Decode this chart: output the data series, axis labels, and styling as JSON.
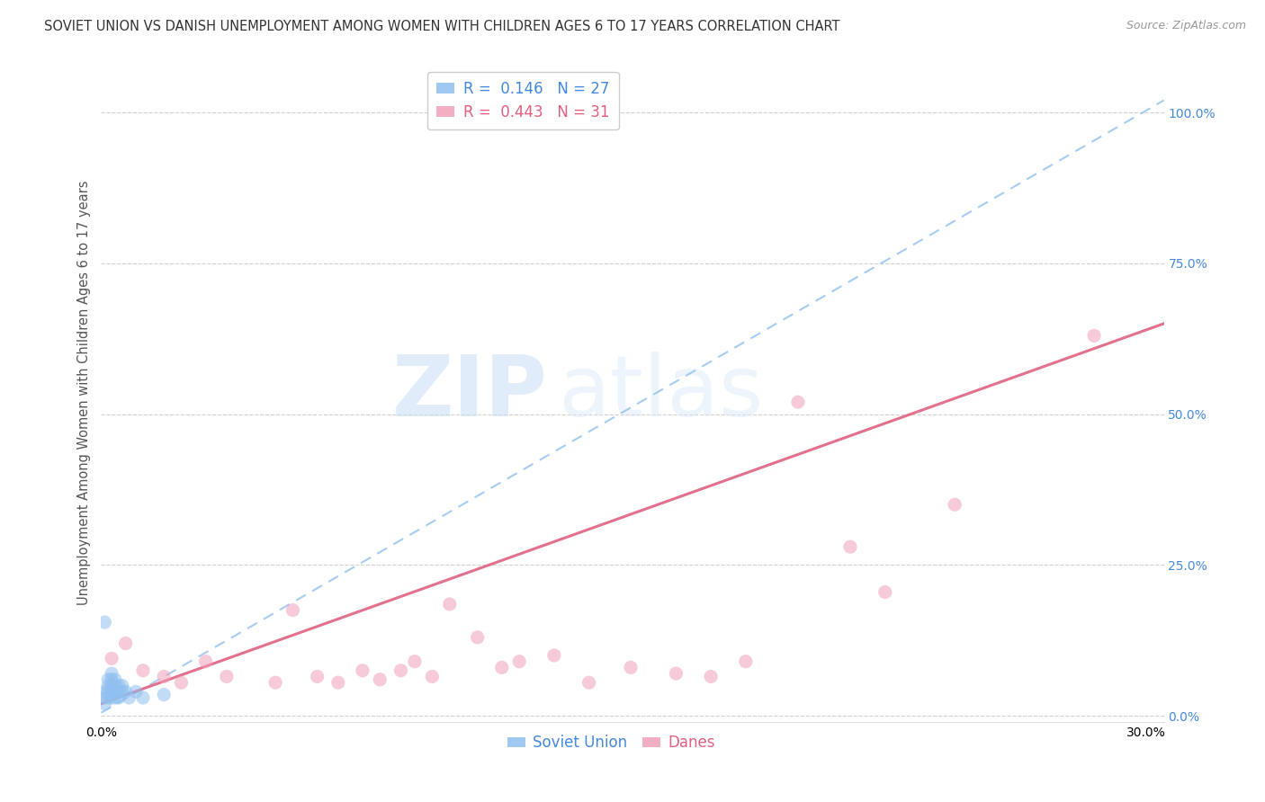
{
  "title": "SOVIET UNION VS DANISH UNEMPLOYMENT AMONG WOMEN WITH CHILDREN AGES 6 TO 17 YEARS CORRELATION CHART",
  "source": "Source: ZipAtlas.com",
  "ylabel": "Unemployment Among Women with Children Ages 6 to 17 years",
  "ytick_labels": [
    "0.0%",
    "25.0%",
    "50.0%",
    "75.0%",
    "100.0%"
  ],
  "ytick_values": [
    0.0,
    0.25,
    0.5,
    0.75,
    1.0
  ],
  "xlim": [
    0.0,
    0.305
  ],
  "ylim": [
    -0.01,
    1.08
  ],
  "legend_r_blue": "0.146",
  "legend_n_blue": "27",
  "legend_r_pink": "0.443",
  "legend_n_pink": "31",
  "watermark_zip": "ZIP",
  "watermark_atlas": "atlas",
  "blue_scatter_x": [
    0.001,
    0.001,
    0.001,
    0.001,
    0.002,
    0.002,
    0.002,
    0.002,
    0.003,
    0.003,
    0.003,
    0.003,
    0.003,
    0.004,
    0.004,
    0.004,
    0.004,
    0.005,
    0.005,
    0.005,
    0.006,
    0.006,
    0.007,
    0.008,
    0.01,
    0.012,
    0.018
  ],
  "blue_scatter_y": [
    0.155,
    0.04,
    0.03,
    0.02,
    0.06,
    0.05,
    0.04,
    0.03,
    0.07,
    0.06,
    0.05,
    0.04,
    0.03,
    0.06,
    0.05,
    0.04,
    0.03,
    0.05,
    0.04,
    0.03,
    0.05,
    0.04,
    0.04,
    0.03,
    0.04,
    0.03,
    0.035
  ],
  "pink_scatter_x": [
    0.003,
    0.007,
    0.012,
    0.018,
    0.023,
    0.03,
    0.036,
    0.05,
    0.055,
    0.062,
    0.068,
    0.075,
    0.08,
    0.086,
    0.09,
    0.095,
    0.1,
    0.108,
    0.115,
    0.12,
    0.13,
    0.14,
    0.152,
    0.165,
    0.175,
    0.185,
    0.2,
    0.215,
    0.225,
    0.245,
    0.285
  ],
  "pink_scatter_y": [
    0.095,
    0.12,
    0.075,
    0.065,
    0.055,
    0.09,
    0.065,
    0.055,
    0.175,
    0.065,
    0.055,
    0.075,
    0.06,
    0.075,
    0.09,
    0.065,
    0.185,
    0.13,
    0.08,
    0.09,
    0.1,
    0.055,
    0.08,
    0.07,
    0.065,
    0.09,
    0.52,
    0.28,
    0.205,
    0.35,
    0.63
  ],
  "pink_trendline_x": [
    0.0,
    0.305
  ],
  "pink_trendline_y": [
    0.02,
    0.65
  ],
  "blue_trendline_x": [
    0.0,
    0.305
  ],
  "blue_trendline_y": [
    0.005,
    1.02
  ],
  "blue_scatter_color": "#90C0F0",
  "pink_scatter_color": "#F0A0B8",
  "blue_line_color": "#90C0F0",
  "pink_line_color": "#E06080",
  "scatter_size": 120,
  "scatter_alpha": 0.55,
  "grid_color": "#CCCCCC",
  "title_fontsize": 10.5,
  "axis_label_fontsize": 10.5,
  "tick_fontsize": 10,
  "legend_fontsize": 12,
  "source_fontsize": 9,
  "tick_color_blue": "#4488DD",
  "tick_color_right": "#4488DD"
}
